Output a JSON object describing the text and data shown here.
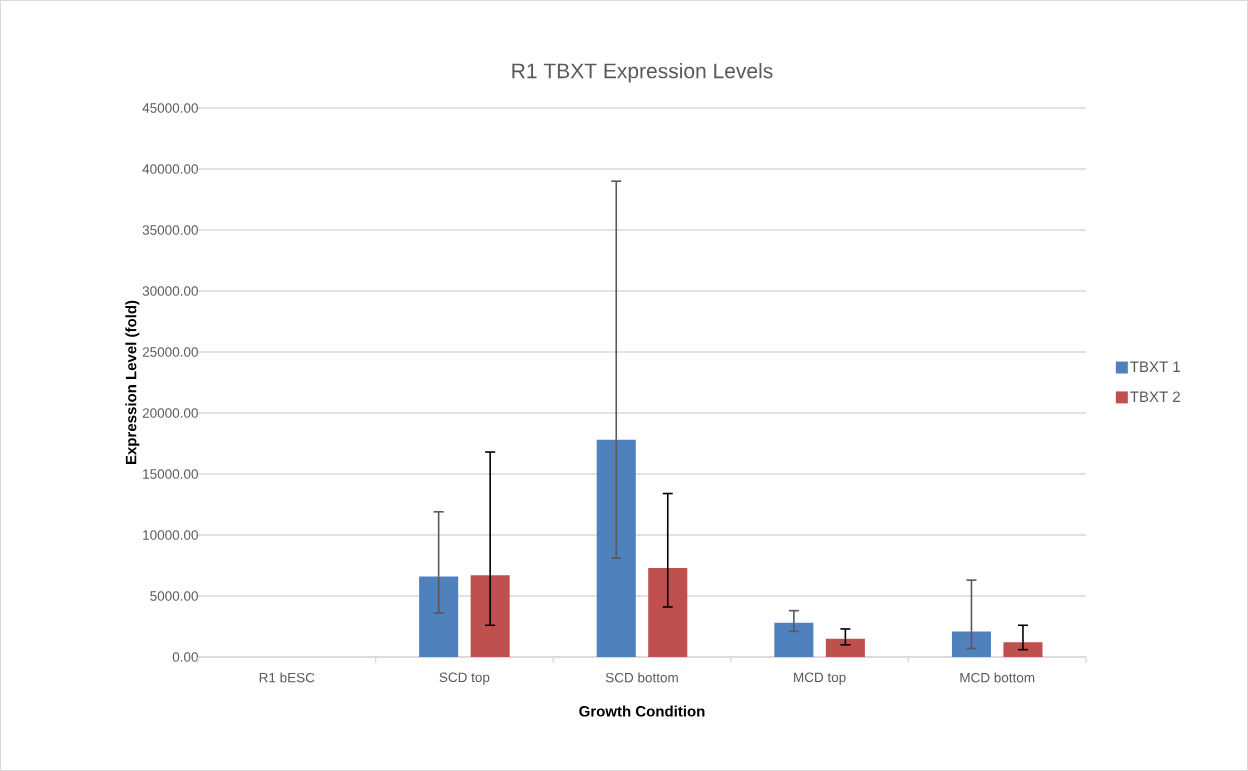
{
  "chart_data": {
    "type": "bar",
    "title": "R1 TBXT Expression Levels",
    "xlabel": "Growth Condition",
    "ylabel": "Expression Level (fold)",
    "categories": [
      "R1 bESC",
      "SCD top",
      "SCD bottom",
      "MCD top",
      "MCD bottom"
    ],
    "series": [
      {
        "name": "TBXT 1",
        "color": "#4f81bd",
        "values": [
          0,
          6600,
          17800,
          2800,
          2100
        ],
        "errors": [
          null,
          [
            3600,
            11900
          ],
          [
            8100,
            39000
          ],
          [
            2100,
            3800
          ],
          [
            700,
            6300
          ]
        ]
      },
      {
        "name": "TBXT 2",
        "color": "#c0504d",
        "values": [
          0,
          6700,
          7300,
          1500,
          1200
        ],
        "errors": [
          null,
          [
            2600,
            16800
          ],
          [
            4100,
            13400
          ],
          [
            1000,
            2300
          ],
          [
            600,
            2600
          ]
        ]
      }
    ],
    "ylim": [
      0,
      45000
    ],
    "yticks": [
      {
        "value": 0,
        "label": "0.00"
      },
      {
        "value": 5000,
        "label": "5000.00"
      },
      {
        "value": 10000,
        "label": "10000.00"
      },
      {
        "value": 15000,
        "label": "15000.00"
      },
      {
        "value": 20000,
        "label": "20000.00"
      },
      {
        "value": 25000,
        "label": "25000.00"
      },
      {
        "value": 30000,
        "label": "30000.00"
      },
      {
        "value": 35000,
        "label": "35000.00"
      },
      {
        "value": 40000,
        "label": "40000.00"
      },
      {
        "value": 45000,
        "label": "45000.00"
      }
    ],
    "grid": "y",
    "legend": "right"
  }
}
